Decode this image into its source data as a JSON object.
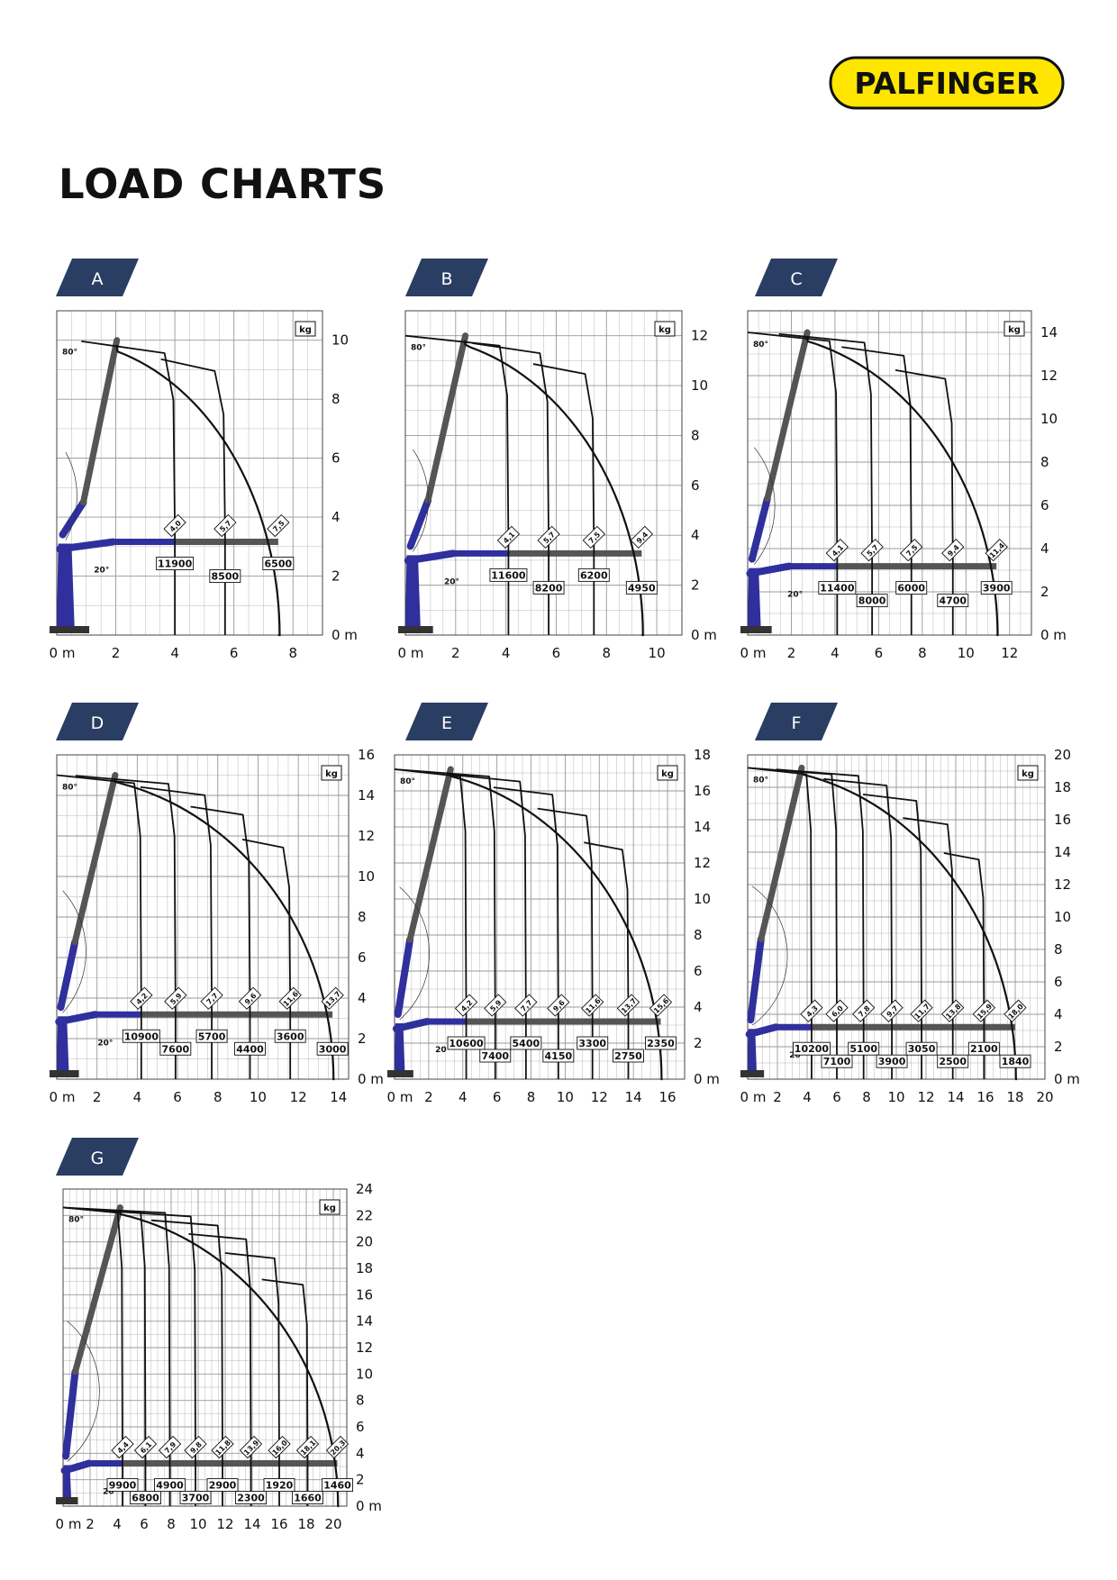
{
  "brand": {
    "name": "PALFINGER",
    "color": "#ffe600"
  },
  "page": {
    "title": "LOAD CHARTS"
  },
  "colors": {
    "tab": "#2a3d62",
    "boom_inner": "#2f2f9e",
    "boom_outer": "#555555",
    "grid": "#999999",
    "curve": "#111111"
  },
  "chart_data": [
    {
      "id": "A",
      "type": "line",
      "xlim": [
        0,
        9
      ],
      "ylim": [
        0,
        11
      ],
      "x_ticks": [
        0,
        2,
        4,
        6,
        8
      ],
      "y_ticks": [
        0,
        2,
        4,
        6,
        8,
        10
      ],
      "x_origin_label": "0 m",
      "y_origin_label": "0 m",
      "unit_label": "kg",
      "angle_up_label": "80°",
      "angle_low_label": "20°",
      "tip_radius": 10.0,
      "boom_y": 3.1,
      "reach_m": [
        4.0,
        5.7,
        7.5
      ],
      "reach_labels": [
        "4,0",
        "5,7",
        "7,5"
      ],
      "loads_kg": [
        "11900",
        "8500",
        "6500"
      ]
    },
    {
      "id": "B",
      "type": "line",
      "xlim": [
        0,
        11
      ],
      "ylim": [
        0,
        13
      ],
      "x_ticks": [
        0,
        2,
        4,
        6,
        8,
        10
      ],
      "y_ticks": [
        0,
        2,
        4,
        6,
        8,
        10,
        12
      ],
      "x_origin_label": "0 m",
      "y_origin_label": "0 m",
      "unit_label": "kg",
      "angle_up_label": "80°",
      "angle_low_label": "20°",
      "tip_radius": 12.0,
      "boom_y": 3.2,
      "reach_m": [
        4.1,
        5.7,
        7.5,
        9.4
      ],
      "reach_labels": [
        "4,1",
        "5,7",
        "7,5",
        "9,4"
      ],
      "loads_kg": [
        "11600",
        "8200",
        "6200",
        "4950"
      ]
    },
    {
      "id": "C",
      "type": "line",
      "xlim": [
        0,
        13
      ],
      "ylim": [
        0,
        15
      ],
      "x_ticks": [
        0,
        2,
        4,
        6,
        8,
        10,
        12
      ],
      "y_ticks": [
        0,
        2,
        4,
        6,
        8,
        10,
        12,
        14
      ],
      "x_origin_label": "0 m",
      "y_origin_label": "0 m",
      "unit_label": "kg",
      "angle_up_label": "80°",
      "angle_low_label": "20°",
      "tip_radius": 14.0,
      "boom_y": 3.1,
      "reach_m": [
        4.1,
        5.7,
        7.5,
        9.4,
        11.4
      ],
      "reach_labels": [
        "4,1",
        "5,7",
        "7,5",
        "9,4",
        "11,4"
      ],
      "loads_kg": [
        "11400",
        "8000",
        "6000",
        "4700",
        "3900"
      ]
    },
    {
      "id": "D",
      "type": "line",
      "xlim": [
        0,
        14.5
      ],
      "ylim": [
        0,
        16
      ],
      "x_ticks": [
        0,
        2,
        4,
        6,
        8,
        10,
        12,
        14
      ],
      "y_ticks": [
        0,
        2,
        4,
        6,
        8,
        10,
        12,
        14,
        16
      ],
      "x_origin_label": "0 m",
      "y_origin_label": "0 m",
      "unit_label": "kg",
      "angle_up_label": "80°",
      "angle_low_label": "20°",
      "tip_radius": 15.0,
      "boom_y": 3.1,
      "reach_m": [
        4.2,
        5.9,
        7.7,
        9.6,
        11.6,
        13.7
      ],
      "reach_labels": [
        "4,2",
        "5,9",
        "7,7",
        "9,6",
        "11,6",
        "13,7"
      ],
      "loads_kg": [
        "10900",
        "7600",
        "5700",
        "4400",
        "3600",
        "3000"
      ]
    },
    {
      "id": "E",
      "type": "line",
      "xlim": [
        0,
        17
      ],
      "ylim": [
        0,
        18
      ],
      "x_ticks": [
        0,
        2,
        4,
        6,
        8,
        10,
        12,
        14,
        16
      ],
      "y_ticks": [
        0,
        2,
        4,
        6,
        8,
        10,
        12,
        14,
        16,
        18
      ],
      "x_origin_label": "0 m",
      "y_origin_label": "0 m",
      "unit_label": "kg",
      "angle_up_label": "80°",
      "angle_low_label": "20°",
      "tip_radius": 17.2,
      "boom_y": 3.1,
      "reach_m": [
        4.2,
        5.9,
        7.7,
        9.6,
        11.6,
        13.7,
        15.6
      ],
      "reach_labels": [
        "4,2",
        "5,9",
        "7,7",
        "9,6",
        "11,6",
        "13,7",
        "15,6"
      ],
      "loads_kg": [
        "10600",
        "7400",
        "5400",
        "4150",
        "3300",
        "2750",
        "2350"
      ]
    },
    {
      "id": "F",
      "type": "line",
      "xlim": [
        0,
        20
      ],
      "ylim": [
        0,
        20
      ],
      "x_ticks": [
        0,
        2,
        4,
        6,
        8,
        10,
        12,
        14,
        16,
        18,
        20
      ],
      "y_ticks": [
        0,
        2,
        4,
        6,
        8,
        10,
        12,
        14,
        16,
        18,
        20
      ],
      "x_origin_label": "0 m",
      "y_origin_label": "0 m",
      "unit_label": "kg",
      "angle_up_label": "80°",
      "angle_low_label": "20°",
      "tip_radius": 19.2,
      "boom_y": 3.1,
      "reach_m": [
        4.3,
        6.0,
        7.8,
        9.7,
        11.7,
        13.8,
        15.9,
        18.0
      ],
      "reach_labels": [
        "4,3",
        "6,0",
        "7,8",
        "9,7",
        "11,7",
        "13,8",
        "15,9",
        "18,0"
      ],
      "loads_kg": [
        "10200",
        "7100",
        "5100",
        "3900",
        "3050",
        "2500",
        "2100",
        "1840"
      ]
    },
    {
      "id": "G",
      "type": "line",
      "xlim": [
        0,
        21
      ],
      "ylim": [
        0,
        24
      ],
      "x_ticks": [
        0,
        2,
        4,
        6,
        8,
        10,
        12,
        14,
        16,
        18,
        20
      ],
      "y_ticks": [
        0,
        2,
        4,
        6,
        8,
        10,
        12,
        14,
        16,
        18,
        20,
        22,
        24
      ],
      "x_origin_label": "0 m",
      "y_origin_label": "0 m",
      "unit_label": "kg",
      "angle_up_label": "80°",
      "angle_low_label": "20°",
      "tip_radius": 22.6,
      "boom_y": 3.1,
      "reach_m": [
        4.4,
        6.1,
        7.9,
        9.8,
        11.8,
        13.9,
        16.0,
        18.1,
        20.3
      ],
      "reach_labels": [
        "4,4",
        "6,1",
        "7,9",
        "9,8",
        "11,8",
        "13,9",
        "16,0",
        "18,1",
        "20,3"
      ],
      "loads_kg": [
        "9900",
        "6800",
        "4900",
        "3700",
        "2900",
        "2300",
        "1920",
        "1660",
        "1460"
      ]
    }
  ]
}
